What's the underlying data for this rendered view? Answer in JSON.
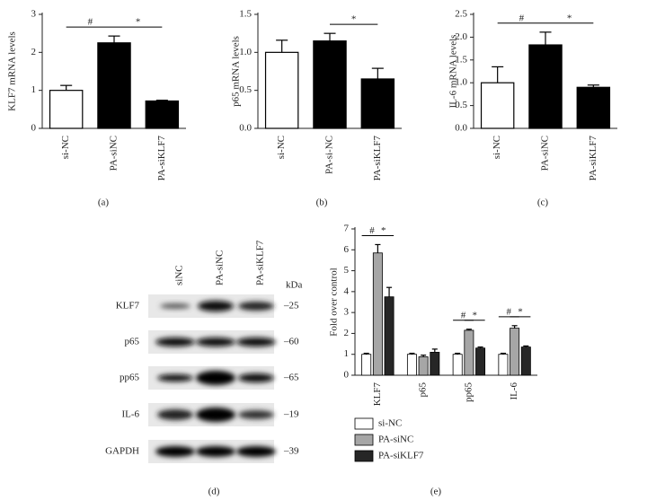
{
  "chart_data": [
    {
      "type": "bar",
      "label": "(a)",
      "ylabel": "KLF7 mRNA levels",
      "categories": [
        "si-NC",
        "PA-siNC",
        "PA-siKLF7"
      ],
      "values": [
        1.0,
        2.25,
        0.72
      ],
      "errors": [
        0.13,
        0.18,
        0.02
      ],
      "colors": [
        "#ffffff",
        "#000000",
        "#000000"
      ],
      "ylim": [
        0,
        3
      ],
      "yticks": [
        0,
        1,
        2,
        3
      ],
      "annotations": [
        {
          "text": "#",
          "from": 0,
          "to": 1
        },
        {
          "text": "*",
          "from": 1,
          "to": 2
        }
      ]
    },
    {
      "type": "bar",
      "label": "(b)",
      "ylabel": "p65 mRNA levels",
      "categories": [
        "si-NC",
        "PA-si-NC",
        "PA-siKLF7"
      ],
      "values": [
        1.0,
        1.15,
        0.65
      ],
      "errors": [
        0.16,
        0.1,
        0.14
      ],
      "colors": [
        "#ffffff",
        "#000000",
        "#000000"
      ],
      "ylim": [
        0,
        1.5
      ],
      "yticks": [
        {
          "value": 0,
          "label": "0.0"
        },
        0.5,
        {
          "value": 1,
          "label": "1.0"
        },
        1.5
      ],
      "annotations": [
        {
          "text": "*",
          "from": 1,
          "to": 2
        }
      ]
    },
    {
      "type": "bar",
      "label": "(c)",
      "ylabel": "IL-6 mRNA levels",
      "categories": [
        "si-NC",
        "PA-siNC",
        "PA-siKLF7"
      ],
      "values": [
        1.0,
        1.83,
        0.9
      ],
      "errors": [
        0.35,
        0.28,
        0.05
      ],
      "colors": [
        "#ffffff",
        "#000000",
        "#000000"
      ],
      "ylim": [
        0,
        2.5
      ],
      "yticks": [
        {
          "value": 0,
          "label": "0.0"
        },
        0.5,
        {
          "value": 1,
          "label": "1.0"
        },
        1.5,
        {
          "value": 2,
          "label": "2.0"
        },
        2.5
      ],
      "annotations": [
        {
          "text": "#",
          "from": 0,
          "to": 1
        },
        {
          "text": "*",
          "from": 1,
          "to": 2
        }
      ]
    },
    {
      "type": "grouped_bar",
      "label": "(e)",
      "ylabel": "Fold over control",
      "categories": [
        "KLF7",
        "p65",
        "pp65",
        "IL-6"
      ],
      "series": [
        {
          "name": "si-NC",
          "color": "#ffffff",
          "values": [
            1,
            1,
            1,
            1
          ],
          "errors": [
            0.05,
            0.05,
            0.05,
            0.05
          ]
        },
        {
          "name": "PA-siNC",
          "color": "#a6a6a6",
          "values": [
            5.85,
            0.88,
            2.15,
            2.25
          ],
          "errors": [
            0.4,
            0.08,
            0.05,
            0.12
          ]
        },
        {
          "name": "PA-siKLF7",
          "color": "#262626",
          "values": [
            3.75,
            1.1,
            1.3,
            1.35
          ],
          "errors": [
            0.45,
            0.15,
            0.05,
            0.05
          ]
        }
      ],
      "ylim": [
        0,
        7
      ],
      "yticks": [
        0,
        1,
        2,
        3,
        4,
        5,
        6,
        7
      ],
      "annotations": [
        {
          "text": "#",
          "category": 0,
          "from": 0,
          "to": 1
        },
        {
          "text": "*",
          "category": 0,
          "from": 1,
          "to": 2
        },
        {
          "text": "#",
          "category": 2,
          "from": 0,
          "to": 1
        },
        {
          "text": "*",
          "category": 2,
          "from": 1,
          "to": 2
        },
        {
          "text": "#",
          "category": 3,
          "from": 0,
          "to": 1
        },
        {
          "text": "*",
          "category": 3,
          "from": 1,
          "to": 2
        }
      ]
    }
  ],
  "blot": {
    "label": "(d)",
    "lanes": [
      "siNC",
      "PA-siNC",
      "PA-siKLF7"
    ],
    "unit": "kDa",
    "rows": [
      {
        "protein": "KLF7",
        "marker": "–25"
      },
      {
        "protein": "p65",
        "marker": "–60"
      },
      {
        "protein": "pp65",
        "marker": "–65"
      },
      {
        "protein": "IL-6",
        "marker": "–19"
      },
      {
        "protein": "GAPDH",
        "marker": "–39"
      }
    ]
  }
}
